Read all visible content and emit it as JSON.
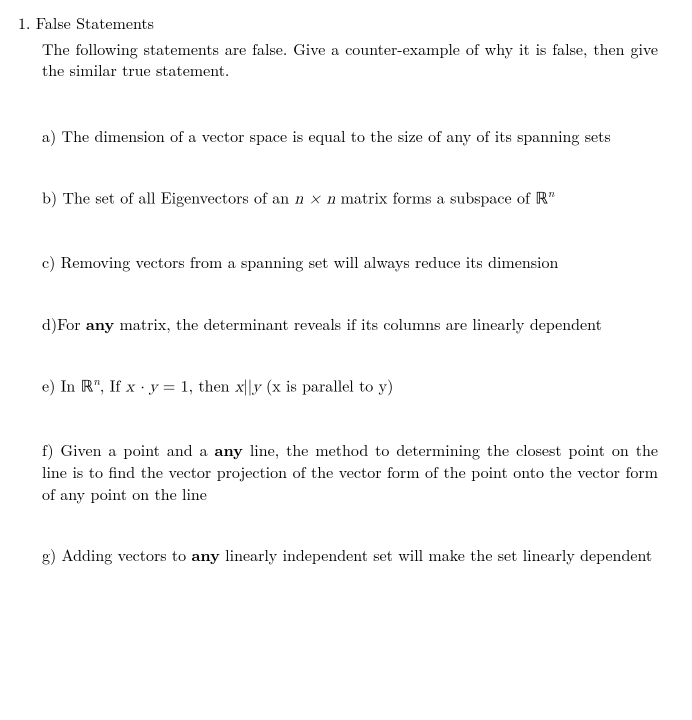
{
  "problem": {
    "number": "1.",
    "title": "False Statements",
    "intro": "The following statements are false. Give a counter-example of why it is false, then give the similar true statement."
  },
  "items": {
    "a": {
      "label": "a)",
      "text1": " The dimension of a vector space is equal to the size of any of its spanning sets"
    },
    "b": {
      "label": "b)",
      "text1": " The set of all Eigenvectors of an ",
      "nxn": "n × n",
      "text2": " matrix forms a subspace of ",
      "rn_r": "ℝ",
      "rn_sup": "n"
    },
    "c": {
      "label": "c)",
      "text1": " Removing vectors from a spanning set will always reduce its dimension"
    },
    "d": {
      "label": "d)",
      "text1": "For ",
      "any": "any",
      "text2": " matrix, the determinant reveals if its columns are linearly dependent"
    },
    "e": {
      "label": "e)",
      "text1": " In ",
      "rn_r": "ℝ",
      "rn_sup": "n",
      "text2": ", If ",
      "xy": "x · y",
      "eq": " = 1, then ",
      "xpar": "x",
      "par": "||",
      "ypar": "y",
      "text3": " (x is parallel to y)"
    },
    "f": {
      "label": "f)",
      "text1": " Given a point and a ",
      "any": "any",
      "text2": " line, the method to determining the closest point on the line is to find the vector projection of the vector form of the point onto the vector form of any point on the line"
    },
    "g": {
      "label": "g)",
      "text1": " Adding vectors to ",
      "any": "any",
      "text2": " linearly independent set will make the set linearly dependent"
    }
  }
}
